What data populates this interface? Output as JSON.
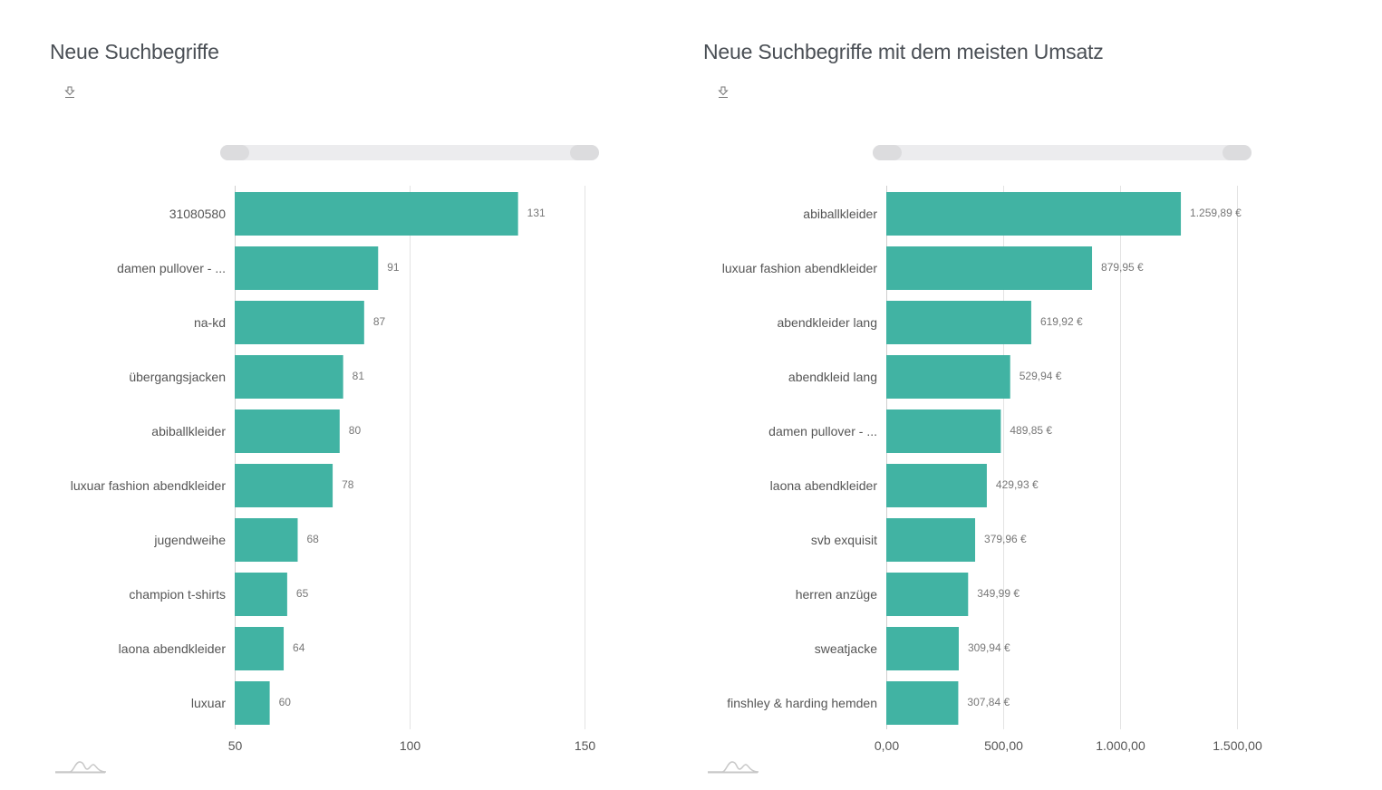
{
  "panels": [
    {
      "title": "Neue Suchbegriffe",
      "download_icon": "download-icon",
      "zoom_icon": "range-selector-icon"
    },
    {
      "title": "Neue Suchbegriffe mit dem meisten Umsatz",
      "download_icon": "download-icon",
      "zoom_icon": "range-selector-icon"
    }
  ],
  "colors": {
    "bar": "#41b3a3",
    "grid": "#e3e3e3",
    "text": "#555555",
    "value": "#777777"
  },
  "chart_data": [
    {
      "type": "bar",
      "orientation": "horizontal",
      "title": "Neue Suchbegriffe",
      "categories": [
        "31080580",
        "damen pullover - ...",
        "na-kd",
        "übergangsjacken",
        "abiballkleider",
        "luxuar fashion abendkleider",
        "jugendweihe",
        "champion t-shirts",
        "laona abendkleider",
        "luxuar"
      ],
      "values": [
        131,
        91,
        87,
        81,
        80,
        78,
        68,
        65,
        64,
        60
      ],
      "value_labels": [
        "131",
        "91",
        "87",
        "81",
        "80",
        "78",
        "68",
        "65",
        "64",
        "60"
      ],
      "xlim": [
        50,
        150
      ],
      "ticks": [
        50,
        100,
        150
      ],
      "tick_labels": [
        "50",
        "100",
        "150"
      ],
      "grid": true
    },
    {
      "type": "bar",
      "orientation": "horizontal",
      "title": "Neue Suchbegriffe mit dem meisten Umsatz",
      "categories": [
        "abiballkleider",
        "luxuar fashion abendkleider",
        "abendkleider lang",
        "abendkleid lang",
        "damen pullover - ...",
        "laona abendkleider",
        "svb exquisit",
        "herren anzüge",
        "sweatjacke",
        "finshley & harding hemden"
      ],
      "values": [
        1259.89,
        879.95,
        619.92,
        529.94,
        489.85,
        429.93,
        379.96,
        349.99,
        309.94,
        307.84
      ],
      "value_labels": [
        "1.259,89 €",
        "879,95 €",
        "619,92 €",
        "529,94 €",
        "489,85 €",
        "429,93 €",
        "379,96 €",
        "349,99 €",
        "309,94 €",
        "307,84 €"
      ],
      "xlim": [
        0,
        1500
      ],
      "ticks": [
        0,
        500,
        1000,
        1500
      ],
      "tick_labels": [
        "0,00",
        "500,00",
        "1.000,00",
        "1.500,00"
      ],
      "grid": true
    }
  ]
}
